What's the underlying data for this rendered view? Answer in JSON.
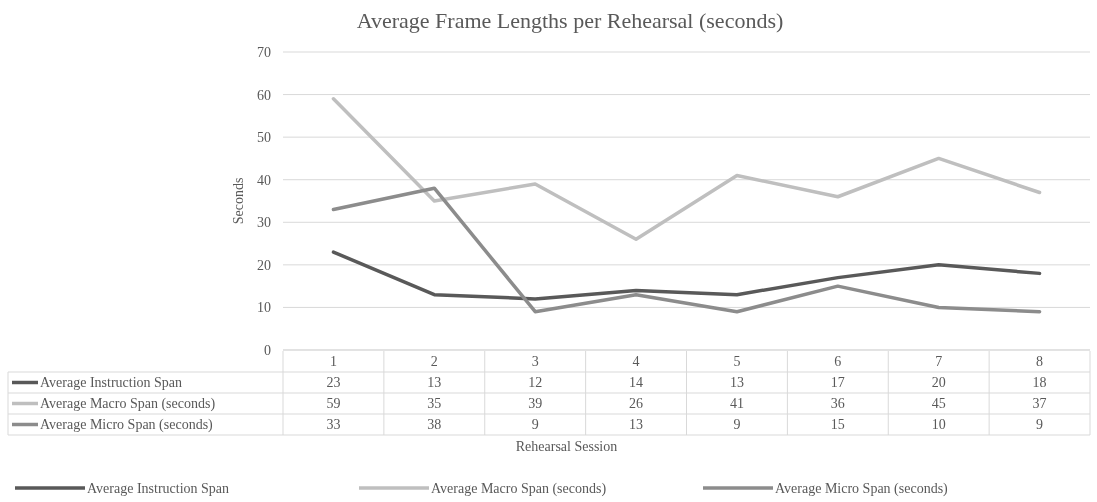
{
  "chart_data": {
    "type": "line",
    "title": "Average Frame Lengths per Rehearsal (seconds)",
    "xlabel": "Rehearsal Session",
    "ylabel": "Seconds",
    "categories": [
      "1",
      "2",
      "3",
      "4",
      "5",
      "6",
      "7",
      "8"
    ],
    "series": [
      {
        "name": "Average Instruction Span",
        "color": "#595959",
        "values": [
          23,
          13,
          12,
          14,
          13,
          17,
          20,
          18
        ]
      },
      {
        "name": "Average Macro Span (seconds)",
        "color": "#bfbfbf",
        "values": [
          59,
          35,
          39,
          26,
          41,
          36,
          45,
          37
        ]
      },
      {
        "name": "Average Micro Span (seconds)",
        "color": "#8c8c8c",
        "values": [
          33,
          38,
          9,
          13,
          9,
          15,
          10,
          9
        ]
      }
    ],
    "ylim": [
      0,
      70
    ],
    "yticks": [
      0,
      10,
      20,
      30,
      40,
      50,
      60,
      70
    ],
    "grid": "y",
    "legend": "bottom",
    "data_labels": true,
    "marker": "none",
    "line_style": "solid"
  }
}
